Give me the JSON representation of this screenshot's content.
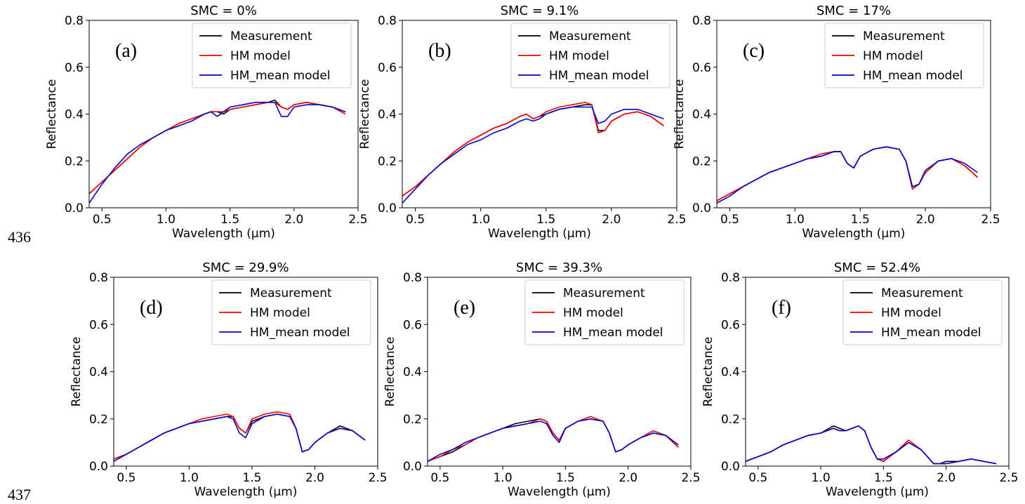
{
  "line_numbers": [
    "436",
    "437"
  ],
  "chart_data": [
    {
      "type": "line",
      "title": "SMC = 0%",
      "panel_label": "(a)",
      "xlabel": "Wavelength (μm)",
      "ylabel": "Reflectance",
      "xlim": [
        0.4,
        2.5
      ],
      "ylim": [
        0.0,
        0.8
      ],
      "xticks": [
        "0.5",
        "1.0",
        "1.5",
        "2.0",
        "2.5"
      ],
      "yticks": [
        "0.0",
        "0.2",
        "0.4",
        "0.6",
        "0.8"
      ],
      "legend_position": "top-right",
      "grid": false,
      "x": [
        0.4,
        0.5,
        0.6,
        0.7,
        0.8,
        0.9,
        1.0,
        1.1,
        1.2,
        1.3,
        1.35,
        1.4,
        1.45,
        1.5,
        1.6,
        1.7,
        1.8,
        1.85,
        1.9,
        1.95,
        2.0,
        2.1,
        2.2,
        2.3,
        2.4
      ],
      "series": [
        {
          "name": "Measurement",
          "color": "#000000",
          "values": [
            0.06,
            0.11,
            0.16,
            0.21,
            0.26,
            0.3,
            0.33,
            0.36,
            0.38,
            0.4,
            0.41,
            0.41,
            0.4,
            0.42,
            0.43,
            0.44,
            0.45,
            0.46,
            0.43,
            0.42,
            0.44,
            0.45,
            0.44,
            0.43,
            0.41
          ]
        },
        {
          "name": "HM model",
          "color": "#ff0000",
          "values": [
            0.06,
            0.11,
            0.16,
            0.21,
            0.26,
            0.3,
            0.33,
            0.36,
            0.38,
            0.4,
            0.41,
            0.41,
            0.41,
            0.42,
            0.43,
            0.44,
            0.45,
            0.45,
            0.43,
            0.42,
            0.44,
            0.45,
            0.44,
            0.43,
            0.4
          ]
        },
        {
          "name": "HM_mean model",
          "color": "#0000cc",
          "values": [
            0.02,
            0.1,
            0.17,
            0.23,
            0.27,
            0.3,
            0.33,
            0.35,
            0.37,
            0.4,
            0.41,
            0.39,
            0.41,
            0.43,
            0.44,
            0.45,
            0.45,
            0.45,
            0.39,
            0.39,
            0.43,
            0.44,
            0.44,
            0.43,
            0.41
          ]
        }
      ]
    },
    {
      "type": "line",
      "title": "SMC = 9.1%",
      "panel_label": "(b)",
      "xlabel": "Wavelength (μm)",
      "ylabel": "Reflectance",
      "xlim": [
        0.4,
        2.5
      ],
      "ylim": [
        0.0,
        0.8
      ],
      "xticks": [
        "0.5",
        "1.0",
        "1.5",
        "2.0",
        "2.5"
      ],
      "yticks": [
        "0.0",
        "0.2",
        "0.4",
        "0.6",
        "0.8"
      ],
      "legend_position": "top-right",
      "grid": false,
      "x": [
        0.4,
        0.5,
        0.6,
        0.7,
        0.8,
        0.9,
        1.0,
        1.1,
        1.2,
        1.3,
        1.35,
        1.4,
        1.45,
        1.5,
        1.6,
        1.7,
        1.8,
        1.85,
        1.9,
        1.95,
        2.0,
        2.1,
        2.2,
        2.3,
        2.4
      ],
      "series": [
        {
          "name": "Measurement",
          "color": "#000000",
          "values": [
            0.05,
            0.09,
            0.14,
            0.19,
            0.24,
            0.28,
            0.31,
            0.34,
            0.36,
            0.39,
            0.4,
            0.38,
            0.39,
            0.4,
            0.42,
            0.43,
            0.44,
            0.44,
            0.33,
            0.33,
            0.37,
            0.4,
            0.41,
            0.39,
            0.35
          ]
        },
        {
          "name": "HM model",
          "color": "#ff0000",
          "values": [
            0.05,
            0.09,
            0.14,
            0.19,
            0.24,
            0.28,
            0.31,
            0.34,
            0.36,
            0.39,
            0.4,
            0.38,
            0.39,
            0.41,
            0.43,
            0.44,
            0.45,
            0.44,
            0.32,
            0.33,
            0.37,
            0.4,
            0.41,
            0.39,
            0.35
          ]
        },
        {
          "name": "HM_mean model",
          "color": "#0000cc",
          "values": [
            0.02,
            0.08,
            0.14,
            0.19,
            0.23,
            0.27,
            0.29,
            0.32,
            0.34,
            0.37,
            0.38,
            0.37,
            0.38,
            0.4,
            0.42,
            0.43,
            0.43,
            0.43,
            0.36,
            0.37,
            0.4,
            0.42,
            0.42,
            0.4,
            0.38
          ]
        }
      ]
    },
    {
      "type": "line",
      "title": "SMC = 17%",
      "panel_label": "(c)",
      "xlabel": "Wavelength (μm)",
      "ylabel": "Reflectance",
      "xlim": [
        0.4,
        2.5
      ],
      "ylim": [
        0.0,
        0.8
      ],
      "xticks": [
        "0.5",
        "1.0",
        "1.5",
        "2.0",
        "2.5"
      ],
      "yticks": [
        "0.0",
        "0.2",
        "0.4",
        "0.6",
        "0.8"
      ],
      "legend_position": "top-right",
      "grid": false,
      "x": [
        0.4,
        0.5,
        0.6,
        0.7,
        0.8,
        0.9,
        1.0,
        1.1,
        1.2,
        1.3,
        1.35,
        1.4,
        1.45,
        1.5,
        1.6,
        1.7,
        1.8,
        1.85,
        1.9,
        1.95,
        2.0,
        2.1,
        2.2,
        2.3,
        2.4
      ],
      "series": [
        {
          "name": "Measurement",
          "color": "#000000",
          "values": [
            0.03,
            0.06,
            0.09,
            0.12,
            0.15,
            0.17,
            0.19,
            0.21,
            0.22,
            0.24,
            0.24,
            0.19,
            0.17,
            0.22,
            0.25,
            0.26,
            0.25,
            0.2,
            0.09,
            0.1,
            0.15,
            0.2,
            0.21,
            0.18,
            0.13
          ]
        },
        {
          "name": "HM model",
          "color": "#ff0000",
          "values": [
            0.03,
            0.06,
            0.09,
            0.12,
            0.15,
            0.17,
            0.19,
            0.21,
            0.23,
            0.24,
            0.24,
            0.19,
            0.17,
            0.22,
            0.25,
            0.26,
            0.25,
            0.2,
            0.08,
            0.1,
            0.15,
            0.2,
            0.21,
            0.18,
            0.13
          ]
        },
        {
          "name": "HM_mean model",
          "color": "#0000cc",
          "values": [
            0.02,
            0.05,
            0.09,
            0.12,
            0.15,
            0.17,
            0.19,
            0.21,
            0.22,
            0.24,
            0.24,
            0.19,
            0.17,
            0.22,
            0.25,
            0.26,
            0.25,
            0.2,
            0.09,
            0.1,
            0.16,
            0.2,
            0.21,
            0.19,
            0.15
          ]
        }
      ]
    },
    {
      "type": "line",
      "title": "SMC = 29.9%",
      "panel_label": "(d)",
      "xlabel": "Wavelength (μm)",
      "ylabel": "Reflectance",
      "xlim": [
        0.4,
        2.5
      ],
      "ylim": [
        0.0,
        0.8
      ],
      "xticks": [
        "0.5",
        "1.0",
        "1.5",
        "2.0",
        "2.5"
      ],
      "yticks": [
        "0.0",
        "0.2",
        "0.4",
        "0.6",
        "0.8"
      ],
      "legend_position": "top-right",
      "grid": false,
      "x": [
        0.4,
        0.5,
        0.6,
        0.7,
        0.8,
        0.9,
        1.0,
        1.1,
        1.2,
        1.3,
        1.35,
        1.4,
        1.45,
        1.5,
        1.6,
        1.7,
        1.8,
        1.85,
        1.9,
        1.95,
        2.0,
        2.1,
        2.2,
        2.3,
        2.4
      ],
      "series": [
        {
          "name": "Measurement",
          "color": "#000000",
          "values": [
            0.03,
            0.05,
            0.08,
            0.11,
            0.14,
            0.16,
            0.18,
            0.19,
            0.2,
            0.21,
            0.21,
            0.16,
            0.14,
            0.19,
            0.21,
            0.22,
            0.21,
            0.16,
            0.06,
            0.07,
            0.1,
            0.14,
            0.17,
            0.15,
            0.11
          ]
        },
        {
          "name": "HM model",
          "color": "#ff0000",
          "values": [
            0.03,
            0.05,
            0.08,
            0.11,
            0.14,
            0.16,
            0.18,
            0.2,
            0.21,
            0.22,
            0.21,
            0.16,
            0.14,
            0.2,
            0.22,
            0.23,
            0.22,
            0.16,
            0.06,
            0.07,
            0.1,
            0.14,
            0.16,
            0.15,
            0.11
          ]
        },
        {
          "name": "HM_mean model",
          "color": "#0000cc",
          "values": [
            0.02,
            0.05,
            0.08,
            0.11,
            0.14,
            0.16,
            0.18,
            0.19,
            0.2,
            0.21,
            0.2,
            0.14,
            0.12,
            0.18,
            0.21,
            0.22,
            0.21,
            0.16,
            0.06,
            0.07,
            0.1,
            0.14,
            0.16,
            0.15,
            0.11
          ]
        }
      ]
    },
    {
      "type": "line",
      "title": "SMC = 39.3%",
      "panel_label": "(e)",
      "xlabel": "Wavelength (μm)",
      "ylabel": "Reflectance",
      "xlim": [
        0.4,
        2.5
      ],
      "ylim": [
        0.0,
        0.8
      ],
      "xticks": [
        "0.5",
        "1.0",
        "1.5",
        "2.0",
        "2.5"
      ],
      "yticks": [
        "0.0",
        "0.2",
        "0.4",
        "0.6",
        "0.8"
      ],
      "legend_position": "top-right",
      "grid": false,
      "x": [
        0.4,
        0.5,
        0.6,
        0.7,
        0.8,
        0.9,
        1.0,
        1.1,
        1.2,
        1.3,
        1.35,
        1.4,
        1.45,
        1.5,
        1.6,
        1.7,
        1.8,
        1.85,
        1.9,
        1.95,
        2.0,
        2.1,
        2.2,
        2.3,
        2.4
      ],
      "series": [
        {
          "name": "Measurement",
          "color": "#000000",
          "values": [
            0.02,
            0.04,
            0.06,
            0.09,
            0.12,
            0.14,
            0.16,
            0.18,
            0.19,
            0.2,
            0.19,
            0.14,
            0.11,
            0.16,
            0.19,
            0.2,
            0.19,
            0.14,
            0.06,
            0.07,
            0.09,
            0.12,
            0.14,
            0.13,
            0.08
          ]
        },
        {
          "name": "HM model",
          "color": "#ff0000",
          "values": [
            0.02,
            0.04,
            0.07,
            0.09,
            0.12,
            0.14,
            0.16,
            0.17,
            0.18,
            0.2,
            0.19,
            0.14,
            0.11,
            0.16,
            0.19,
            0.21,
            0.19,
            0.14,
            0.06,
            0.07,
            0.09,
            0.12,
            0.15,
            0.13,
            0.08
          ]
        },
        {
          "name": "HM_mean model",
          "color": "#0000cc",
          "values": [
            0.02,
            0.05,
            0.07,
            0.1,
            0.12,
            0.14,
            0.16,
            0.17,
            0.18,
            0.19,
            0.18,
            0.13,
            0.1,
            0.16,
            0.19,
            0.2,
            0.19,
            0.14,
            0.06,
            0.07,
            0.09,
            0.12,
            0.14,
            0.13,
            0.09
          ]
        }
      ]
    },
    {
      "type": "line",
      "title": "SMC = 52.4%",
      "panel_label": "(f)",
      "xlabel": "Wavelength (μm)",
      "ylabel": "Reflectance",
      "xlim": [
        0.4,
        2.5
      ],
      "ylim": [
        0.0,
        0.8
      ],
      "xticks": [
        "0.5",
        "1.0",
        "1.5",
        "2.0",
        "2.5"
      ],
      "yticks": [
        "0.0",
        "0.2",
        "0.4",
        "0.6",
        "0.8"
      ],
      "legend_position": "top-right",
      "grid": false,
      "x": [
        0.4,
        0.5,
        0.6,
        0.7,
        0.8,
        0.9,
        1.0,
        1.1,
        1.15,
        1.2,
        1.3,
        1.35,
        1.4,
        1.45,
        1.5,
        1.6,
        1.7,
        1.8,
        1.85,
        1.9,
        1.95,
        2.0,
        2.1,
        2.2,
        2.3,
        2.4
      ],
      "series": [
        {
          "name": "Measurement",
          "color": "#000000",
          "values": [
            0.02,
            0.04,
            0.06,
            0.09,
            0.11,
            0.13,
            0.14,
            0.17,
            0.16,
            0.15,
            0.17,
            0.15,
            0.08,
            0.03,
            0.02,
            0.06,
            0.1,
            0.07,
            0.04,
            0.01,
            0.01,
            0.02,
            0.02,
            0.03,
            0.02,
            0.01
          ]
        },
        {
          "name": "HM model",
          "color": "#ff0000",
          "values": [
            0.02,
            0.04,
            0.06,
            0.09,
            0.11,
            0.13,
            0.14,
            0.16,
            0.15,
            0.15,
            0.17,
            0.15,
            0.08,
            0.03,
            0.02,
            0.06,
            0.11,
            0.07,
            0.04,
            0.01,
            0.01,
            0.01,
            0.02,
            0.03,
            0.02,
            0.01
          ]
        },
        {
          "name": "HM_mean model",
          "color": "#0000cc",
          "values": [
            0.02,
            0.04,
            0.06,
            0.09,
            0.11,
            0.13,
            0.14,
            0.16,
            0.15,
            0.15,
            0.17,
            0.15,
            0.08,
            0.03,
            0.03,
            0.06,
            0.1,
            0.07,
            0.04,
            0.01,
            0.01,
            0.01,
            0.02,
            0.03,
            0.02,
            0.01
          ]
        }
      ]
    }
  ]
}
